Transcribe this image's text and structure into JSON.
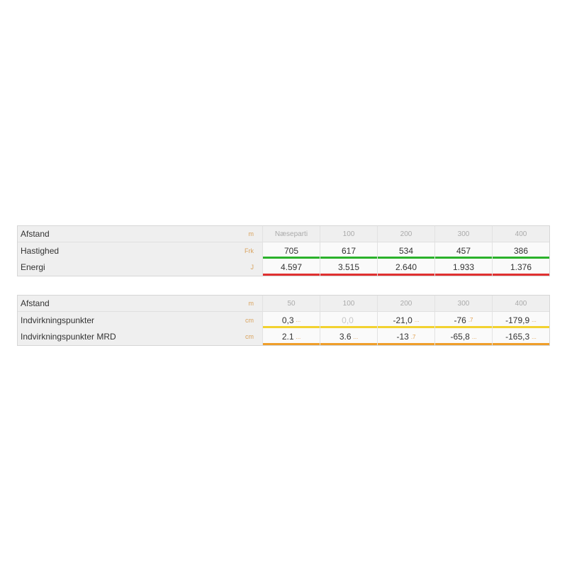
{
  "table1": {
    "header": {
      "label": "Afstand",
      "unit": "m",
      "cols": [
        "Næseparti",
        "100",
        "200",
        "300",
        "400"
      ]
    },
    "rows": [
      {
        "label": "Hastighed",
        "unit": "Frk",
        "values": [
          "705",
          "617",
          "534",
          "457",
          "386"
        ],
        "bar_color": "#2bb22b"
      },
      {
        "label": "Energi",
        "unit": "J",
        "values": [
          "4.597",
          "3.515",
          "2.640",
          "1.933",
          "1.376"
        ],
        "bar_color": "#e03131"
      }
    ]
  },
  "table2": {
    "header": {
      "label": "Afstand",
      "unit": "m",
      "cols": [
        "50",
        "100",
        "200",
        "300",
        "400"
      ]
    },
    "rows": [
      {
        "label": "Indvirkningspunkter",
        "unit": "cm",
        "values": [
          "0,3",
          "0,0",
          "-21,0",
          "-76",
          "-179,9"
        ],
        "suffixes": [
          "...",
          "",
          "...",
          ".7",
          "..."
        ],
        "bar_color": "#f2d230"
      },
      {
        "label": "Indvirkningspunkter MRD",
        "unit": "cm",
        "values": [
          "2.1",
          "3.6",
          "-13",
          "-65,8",
          "-165,3"
        ],
        "suffixes": [
          "...",
          "...",
          ".7",
          "...",
          "..."
        ],
        "bar_color": "#ef9e2a"
      }
    ]
  }
}
